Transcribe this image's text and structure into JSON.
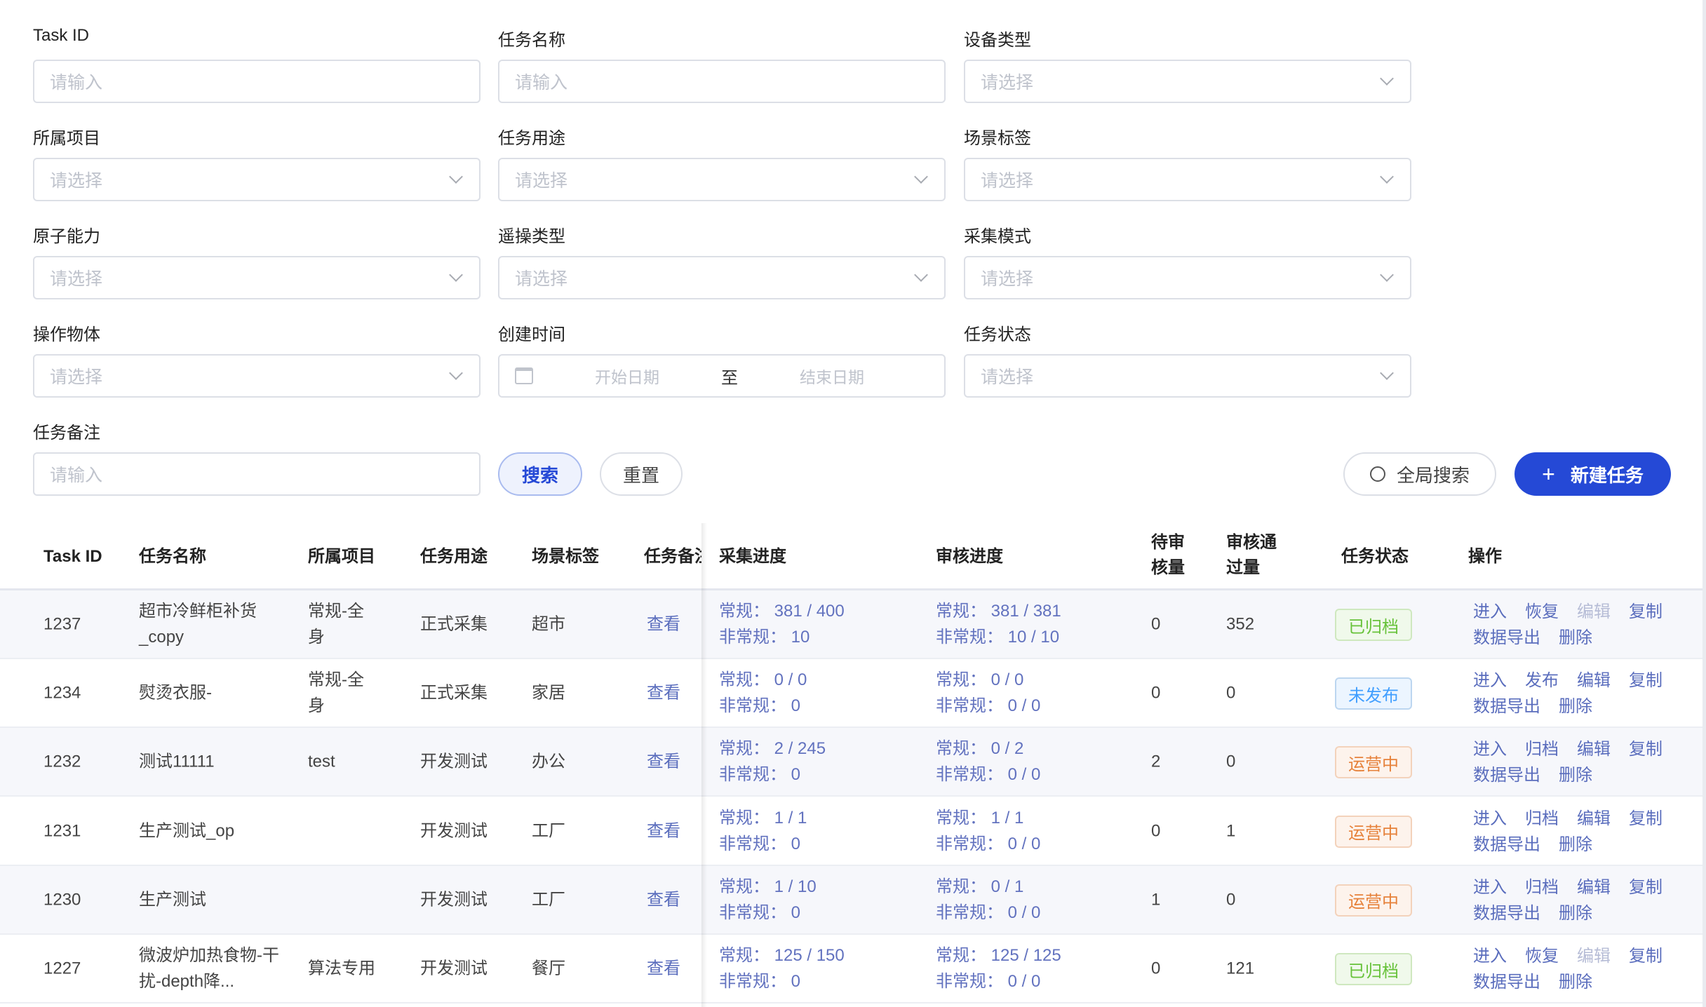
{
  "filters": [
    {
      "label": "Task ID",
      "placeholder": "请输入",
      "type": "input"
    },
    {
      "label": "任务名称",
      "placeholder": "请输入",
      "type": "input"
    },
    {
      "label": "设备类型",
      "placeholder": "请选择",
      "type": "select"
    },
    {
      "label": "所属项目",
      "placeholder": "请选择",
      "type": "select"
    },
    {
      "label": "任务用途",
      "placeholder": "请选择",
      "type": "select"
    },
    {
      "label": "场景标签",
      "placeholder": "请选择",
      "type": "select"
    },
    {
      "label": "原子能力",
      "placeholder": "请选择",
      "type": "select"
    },
    {
      "label": "遥操类型",
      "placeholder": "请选择",
      "type": "select"
    },
    {
      "label": "采集模式",
      "placeholder": "请选择",
      "type": "select"
    },
    {
      "label": "操作物体",
      "placeholder": "请选择",
      "type": "select"
    },
    {
      "label": "创建时间",
      "start_placeholder": "开始日期",
      "separator": "至",
      "end_placeholder": "结束日期",
      "type": "daterange"
    },
    {
      "label": "任务状态",
      "placeholder": "请选择",
      "type": "select"
    },
    {
      "label": "任务备注",
      "placeholder": "请输入",
      "type": "input"
    }
  ],
  "buttons": {
    "search": "搜索",
    "reset": "重置",
    "global_search": "全局搜索",
    "new_task": "新建任务",
    "new_task_icon": "+"
  },
  "colors": {
    "primary": "#2549d6",
    "link": "#5a6dbd",
    "archived": "#67c23a",
    "unpublished": "#409eff",
    "running": "#e6813a"
  },
  "table": {
    "headers": [
      "Task ID",
      "任务名称",
      "所属项目",
      "任务用途",
      "场景标签",
      "任务备注",
      "采集进度",
      "审核进度",
      "待审核量",
      "审核通过量",
      "任务状态",
      "操作"
    ],
    "rows": [
      {
        "id": "1237",
        "name": "超市冷鲜柜补货_copy",
        "project": "常规-全身",
        "use": "正式采集",
        "scene": "超市",
        "note": "查看",
        "collect": [
          "常规： 381 / 400",
          "非常规： 10"
        ],
        "review": [
          "常规： 381 / 381",
          "非常规： 10 / 10"
        ],
        "pending": "0",
        "passed": "352",
        "status": "已归档",
        "status_kind": "archived",
        "ops": [
          "进入",
          "恢复",
          "编辑",
          "复制",
          "数据导出",
          "删除"
        ]
      },
      {
        "id": "1234",
        "name": "熨烫衣服-",
        "project": "常规-全身",
        "use": "正式采集",
        "scene": "家居",
        "note": "查看",
        "collect": [
          "常规： 0 / 0",
          "非常规： 0"
        ],
        "review": [
          "常规： 0 / 0",
          "非常规： 0 / 0"
        ],
        "pending": "0",
        "passed": "0",
        "status": "未发布",
        "status_kind": "unpublished",
        "ops": [
          "进入",
          "发布",
          "编辑",
          "复制",
          "数据导出",
          "删除"
        ]
      },
      {
        "id": "1232",
        "name": "测试11111",
        "project": "test",
        "use": "开发测试",
        "scene": "办公",
        "note": "查看",
        "collect": [
          "常规： 2 / 245",
          "非常规： 0"
        ],
        "review": [
          "常规： 0 / 2",
          "非常规： 0 / 0"
        ],
        "pending": "2",
        "passed": "0",
        "status": "运营中",
        "status_kind": "running",
        "ops": [
          "进入",
          "归档",
          "编辑",
          "复制",
          "数据导出",
          "删除"
        ]
      },
      {
        "id": "1231",
        "name": "生产测试_op",
        "project": "",
        "use": "开发测试",
        "scene": "工厂",
        "note": "查看",
        "collect": [
          "常规： 1 / 1",
          "非常规： 0"
        ],
        "review": [
          "常规： 1 / 1",
          "非常规： 0 / 0"
        ],
        "pending": "0",
        "passed": "1",
        "status": "运营中",
        "status_kind": "running",
        "ops": [
          "进入",
          "归档",
          "编辑",
          "复制",
          "数据导出",
          "删除"
        ]
      },
      {
        "id": "1230",
        "name": "生产测试",
        "project": "",
        "use": "开发测试",
        "scene": "工厂",
        "note": "查看",
        "collect": [
          "常规： 1 / 10",
          "非常规： 0"
        ],
        "review": [
          "常规： 0 / 1",
          "非常规： 0 / 0"
        ],
        "pending": "1",
        "passed": "0",
        "status": "运营中",
        "status_kind": "running",
        "ops": [
          "进入",
          "归档",
          "编辑",
          "复制",
          "数据导出",
          "删除"
        ]
      },
      {
        "id": "1227",
        "name": "微波炉加热食物-干扰-depth降...",
        "project": "算法专用",
        "use": "开发测试",
        "scene": "餐厅",
        "note": "查看",
        "collect": [
          "常规： 125 / 150",
          "非常规： 0"
        ],
        "review": [
          "常规： 125 / 125",
          "非常规： 0 / 0"
        ],
        "pending": "0",
        "passed": "121",
        "status": "已归档",
        "status_kind": "archived",
        "ops": [
          "进入",
          "恢复",
          "编辑",
          "复制",
          "数据导出",
          "删除"
        ]
      }
    ]
  }
}
